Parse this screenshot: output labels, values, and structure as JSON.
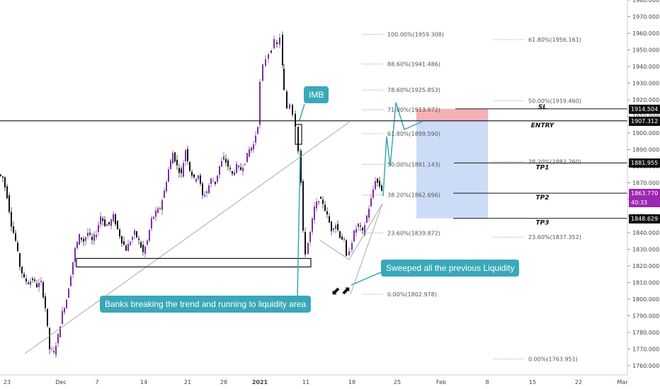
{
  "chart_data": {
    "type": "candlestick",
    "y_axis": {
      "min": 1755,
      "max": 1985,
      "position": "right",
      "ticks": [
        1760,
        1770,
        1780,
        1790,
        1800,
        1810,
        1820,
        1830,
        1840,
        1850,
        1860,
        1870,
        1880,
        1890,
        1900,
        1910,
        1920,
        1930,
        1940,
        1950,
        1960,
        1970,
        1980
      ]
    },
    "x_axis": {
      "ticks": [
        "23",
        "Dec",
        "7",
        "14",
        "21",
        "28",
        "2021",
        "11",
        "18",
        "25",
        "Feb",
        "8",
        "15",
        "22",
        "Mar"
      ]
    },
    "price_path": [
      [
        0,
        1875
      ],
      [
        6,
        1873
      ],
      [
        12,
        1862
      ],
      [
        18,
        1845
      ],
      [
        24,
        1835
      ],
      [
        30,
        1820
      ],
      [
        36,
        1812
      ],
      [
        42,
        1810
      ],
      [
        48,
        1812
      ],
      [
        54,
        1808
      ],
      [
        60,
        1810
      ],
      [
        66,
        1795
      ],
      [
        72,
        1770
      ],
      [
        78,
        1768
      ],
      [
        84,
        1778
      ],
      [
        90,
        1792
      ],
      [
        96,
        1800
      ],
      [
        102,
        1815
      ],
      [
        108,
        1830
      ],
      [
        114,
        1838
      ],
      [
        120,
        1835
      ],
      [
        126,
        1840
      ],
      [
        132,
        1835
      ],
      [
        138,
        1840
      ],
      [
        144,
        1850
      ],
      [
        150,
        1845
      ],
      [
        156,
        1845
      ],
      [
        162,
        1850
      ],
      [
        168,
        1842
      ],
      [
        174,
        1835
      ],
      [
        180,
        1830
      ],
      [
        186,
        1835
      ],
      [
        192,
        1840
      ],
      [
        198,
        1835
      ],
      [
        204,
        1828
      ],
      [
        210,
        1835
      ],
      [
        216,
        1848
      ],
      [
        222,
        1852
      ],
      [
        228,
        1855
      ],
      [
        234,
        1865
      ],
      [
        240,
        1878
      ],
      [
        246,
        1888
      ],
      [
        252,
        1880
      ],
      [
        258,
        1875
      ],
      [
        264,
        1890
      ],
      [
        270,
        1878
      ],
      [
        276,
        1872
      ],
      [
        282,
        1875
      ],
      [
        288,
        1862
      ],
      [
        294,
        1865
      ],
      [
        300,
        1872
      ],
      [
        306,
        1870
      ],
      [
        312,
        1880
      ],
      [
        318,
        1885
      ],
      [
        324,
        1880
      ],
      [
        330,
        1875
      ],
      [
        336,
        1880
      ],
      [
        342,
        1878
      ],
      [
        348,
        1883
      ],
      [
        354,
        1890
      ],
      [
        360,
        1893
      ],
      [
        366,
        1905
      ],
      [
        370,
        1930
      ],
      [
        374,
        1940
      ],
      [
        378,
        1945
      ],
      [
        382,
        1948
      ],
      [
        386,
        1950
      ],
      [
        390,
        1955
      ],
      [
        394,
        1953
      ],
      [
        398,
        1958
      ],
      [
        400,
        1940
      ],
      [
        404,
        1925
      ],
      [
        408,
        1915
      ],
      [
        412,
        1918
      ],
      [
        416,
        1912
      ],
      [
        420,
        1905
      ],
      [
        424,
        1890
      ],
      [
        427,
        1870
      ],
      [
        430,
        1840
      ],
      [
        434,
        1828
      ],
      [
        440,
        1840
      ],
      [
        446,
        1855
      ],
      [
        452,
        1860
      ],
      [
        458,
        1858
      ],
      [
        464,
        1850
      ],
      [
        470,
        1842
      ],
      [
        476,
        1845
      ],
      [
        482,
        1838
      ],
      [
        488,
        1835
      ],
      [
        492,
        1825
      ],
      [
        496,
        1830
      ],
      [
        502,
        1840
      ],
      [
        508,
        1845
      ],
      [
        514,
        1840
      ],
      [
        520,
        1850
      ],
      [
        526,
        1860
      ],
      [
        532,
        1872
      ],
      [
        538,
        1868
      ],
      [
        541,
        1866
      ]
    ],
    "drawn_levels": [
      {
        "label": "SL",
        "value": 1914.504,
        "tag": "1914.504"
      },
      {
        "label": "ENTRY",
        "value": 1907.312,
        "tag": "1907.312"
      },
      {
        "label": "TP1",
        "value": 1881.955,
        "tag": "1881.955"
      },
      {
        "label": "TP2",
        "value": 1863.77,
        "tag": "1863.770"
      },
      {
        "label": "TP3",
        "value": 1848.629,
        "tag": "1848.629"
      }
    ],
    "countdown": "40:33",
    "fib_left": [
      {
        "text": "100.00%(1959.308)",
        "value": 1959.308
      },
      {
        "text": "88.60%(1941.486)",
        "value": 1941.486
      },
      {
        "text": "78.60%(1925.853)",
        "value": 1925.853
      },
      {
        "text": "71.00%(1913.972)",
        "value": 1913.972
      },
      {
        "text": "61.80%(1899.590)",
        "value": 1899.59
      },
      {
        "text": "50.00%(1881.143)",
        "value": 1881.143
      },
      {
        "text": "38.20%(1862.696)",
        "value": 1862.696
      },
      {
        "text": "23.60%(1839.872)",
        "value": 1839.872
      },
      {
        "text": "0.00%(1802.978)",
        "value": 1802.978
      }
    ],
    "fib_right": [
      {
        "text": "61.80%(1956.161)",
        "value": 1956.161
      },
      {
        "text": "50.00%(1919.460)",
        "value": 1919.46
      },
      {
        "text": "38.20%(1882.760)",
        "value": 1882.76
      },
      {
        "text": "23.60%(1837.352)",
        "value": 1837.352
      },
      {
        "text": "0.00%(1763.951)",
        "value": 1763.951
      }
    ],
    "zone": {
      "low": 1820,
      "high": 1823
    },
    "colors": {
      "up": "#7b2fa0",
      "down": "#111111",
      "sl_zone": "#f4a7b0",
      "tp_zone": "#c7d8f5",
      "callout": "#3aa8b8",
      "current_tag": "#9c27b0"
    }
  },
  "callouts": {
    "imb": "IMB",
    "sweep": "Sweeped all the previous Liquidity",
    "banks": "Banks breaking the trend and running to liquidity area"
  }
}
